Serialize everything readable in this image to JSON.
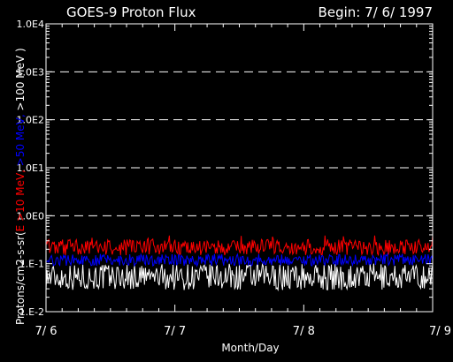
{
  "chart_data": {
    "type": "line",
    "title": "GOES-9 Proton Flux",
    "subtitle": "Begin: 7/ 6/ 1997",
    "xlabel": "Month/Day",
    "ylabel_parts": [
      {
        "text": "Protons/cm2-s-sr(",
        "color": "#ffffff"
      },
      {
        "text": "E >10 MeV, ",
        "color": "#ff0000"
      },
      {
        "text": ">50 MeV, ",
        "color": "#0000ff"
      },
      {
        "text": ">100 MeV )",
        "color": "#ffffff"
      }
    ],
    "y_scale": "log",
    "ylim": [
      0.01,
      10000
    ],
    "y_ticks": [
      {
        "value": 0.01,
        "label": "1.E-2"
      },
      {
        "value": 0.1,
        "label": "1.E-1"
      },
      {
        "value": 1,
        "label": "1.0E0"
      },
      {
        "value": 10,
        "label": "1.0E1"
      },
      {
        "value": 100,
        "label": "1.0E2"
      },
      {
        "value": 1000,
        "label": "1.0E3"
      },
      {
        "value": 10000,
        "label": "1.0E4"
      }
    ],
    "dashed_gridlines": [
      1,
      10,
      100,
      1000
    ],
    "xlim_days": [
      6,
      9
    ],
    "x_ticks": [
      {
        "value": 6,
        "label": "7/ 6"
      },
      {
        "value": 7,
        "label": "7/ 7"
      },
      {
        "value": 8,
        "label": "7/ 8"
      },
      {
        "value": 9,
        "label": "7/ 9"
      }
    ],
    "series": [
      {
        "name": "E >10 MeV",
        "color": "#ff0000",
        "typical_range": [
          0.15,
          0.32
        ]
      },
      {
        "name": ">50 MeV",
        "color": "#0000ff",
        "typical_range": [
          0.09,
          0.16
        ]
      },
      {
        "name": ">100 MeV",
        "color": "#ffffff",
        "typical_range": [
          0.028,
          0.1
        ]
      }
    ]
  }
}
